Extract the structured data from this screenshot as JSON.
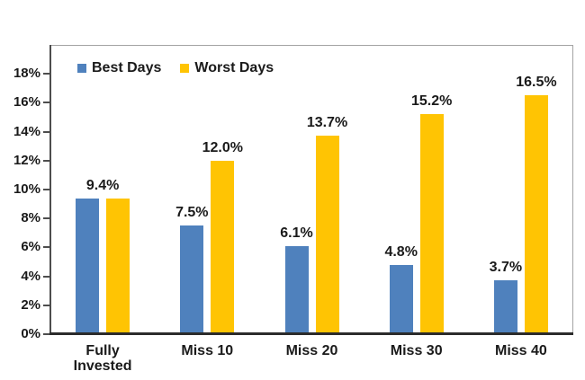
{
  "chart_data": {
    "type": "bar",
    "title": "",
    "xlabel": "",
    "ylabel": "",
    "categories": [
      "Fully\nInvested",
      "Miss 10",
      "Miss 20",
      "Miss 30",
      "Miss 40"
    ],
    "series": [
      {
        "name": "Best Days",
        "color": "#4F81BD",
        "values": [
          9.4,
          7.5,
          6.1,
          4.8,
          3.7
        ]
      },
      {
        "name": "Worst Days",
        "color": "#FFC403",
        "values": [
          9.4,
          12.0,
          13.7,
          15.2,
          16.5
        ]
      }
    ],
    "value_labels": [
      {
        "text": "9.4%",
        "category_index": 0,
        "anchor": "group",
        "value": 9.4
      },
      {
        "text": "7.5%",
        "category_index": 1,
        "anchor": "series0",
        "value": 7.5
      },
      {
        "text": "6.1%",
        "category_index": 2,
        "anchor": "series0",
        "value": 6.1
      },
      {
        "text": "4.8%",
        "category_index": 3,
        "anchor": "series0",
        "value": 4.8
      },
      {
        "text": "3.7%",
        "category_index": 4,
        "anchor": "series0",
        "value": 3.7
      },
      {
        "text": "12.0%",
        "category_index": 1,
        "anchor": "series1",
        "value": 12.0
      },
      {
        "text": "13.7%",
        "category_index": 2,
        "anchor": "series1",
        "value": 13.7
      },
      {
        "text": "15.2%",
        "category_index": 3,
        "anchor": "series1",
        "value": 15.2
      },
      {
        "text": "16.5%",
        "category_index": 4,
        "anchor": "series1",
        "value": 16.5
      }
    ],
    "y_ticks": [
      "0%",
      "2%",
      "4%",
      "6%",
      "8%",
      "10%",
      "12%",
      "14%",
      "16%",
      "18%"
    ],
    "y_tick_values": [
      0,
      2,
      4,
      6,
      8,
      10,
      12,
      14,
      16,
      18
    ],
    "ylim": [
      0,
      20
    ],
    "grid": false,
    "legend_position": "inside-top-left",
    "colors": {
      "best_days": "#4F81BD",
      "worst_days": "#FFC403",
      "axis_line": "#4d4d4d",
      "bottom_axis": "#2b2b2b",
      "plot_border": "#a3a3a3",
      "text": "#1a1a1a",
      "background": "#ffffff"
    }
  }
}
